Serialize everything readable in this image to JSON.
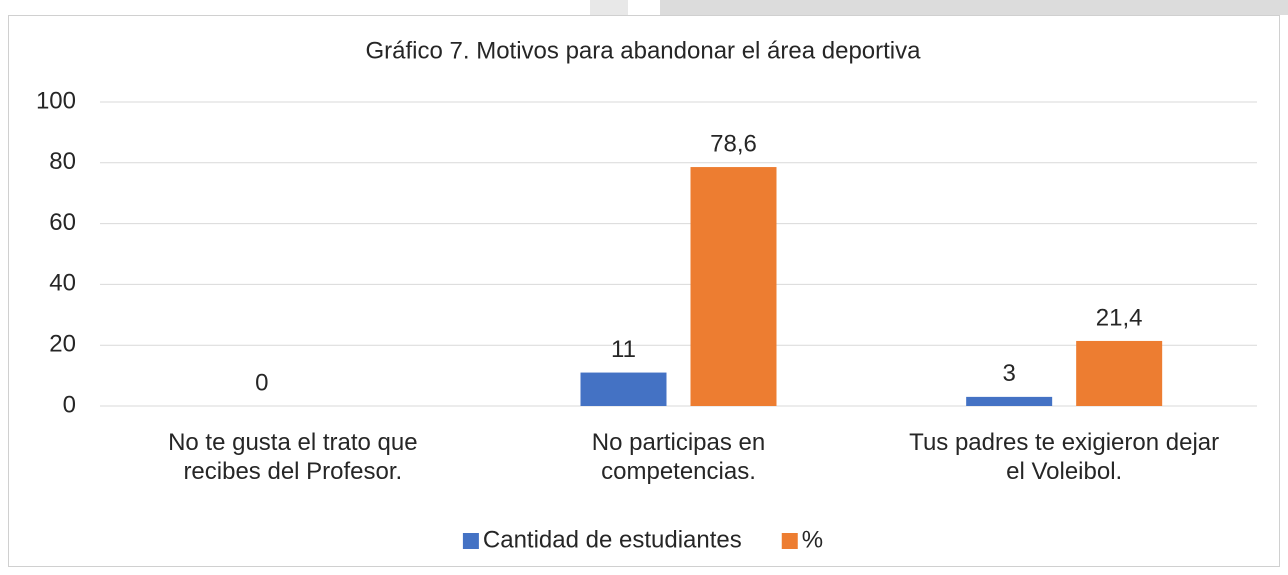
{
  "chart_data": {
    "type": "bar",
    "title": "Gráfico 7. Motivos para abandonar el área deportiva",
    "categories": [
      "No te gusta el trato que recibes del Profesor.",
      "No participas en competencias.",
      "Tus padres te exigieron dejar el Voleibol."
    ],
    "series": [
      {
        "name": "Cantidad de estudiantes",
        "color": "#4472c4",
        "values": [
          0,
          11,
          3
        ],
        "value_labels": [
          "0",
          "11",
          "3"
        ]
      },
      {
        "name": "%",
        "color": "#ed7d31",
        "values": [
          null,
          78.6,
          21.4
        ],
        "value_labels": [
          null,
          "78,6",
          "21,4"
        ]
      }
    ],
    "ylim": [
      0,
      100
    ],
    "yticks": [
      0,
      20,
      40,
      60,
      80,
      100
    ],
    "grid": true,
    "legend": "bottom"
  }
}
